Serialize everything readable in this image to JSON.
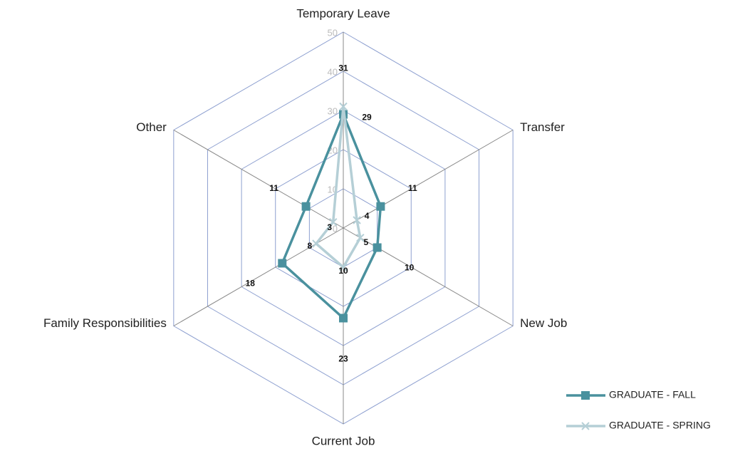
{
  "chart_data": {
    "type": "radar",
    "categories": [
      "Temporary Leave",
      "Transfer",
      "New Job",
      "Current Job",
      "Family Responsibilities",
      "Other"
    ],
    "series": [
      {
        "name": "GRADUATE - FALL",
        "color": "#4a919e",
        "marker": "square",
        "values": [
          29,
          11,
          10,
          23,
          18,
          11
        ]
      },
      {
        "name": "GRADUATE - SPRING",
        "color": "#b5cfd6",
        "marker": "x",
        "values": [
          31,
          4,
          5,
          10,
          8,
          3
        ]
      }
    ],
    "ylim": [
      0,
      50
    ],
    "yticks": [
      0,
      10,
      20,
      30,
      40,
      50
    ],
    "legend": "bottom-right"
  }
}
